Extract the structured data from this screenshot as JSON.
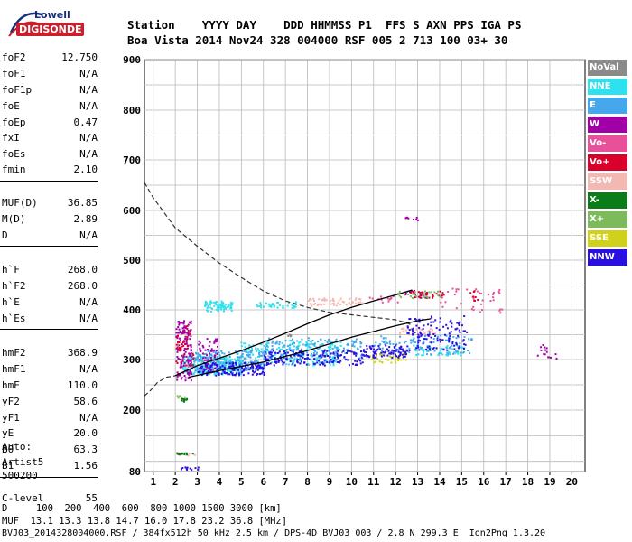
{
  "logo": {
    "line1": "Lowell",
    "line2": "DIGISONDE"
  },
  "header": {
    "row1": "Station    YYYY DAY    DDD HHMMSS P1  FFS S AXN PPS IGA PS",
    "row2": "Boa Vista 2014 Nov24 328 004000 RSF 005 2 713 100 03+ 30"
  },
  "params": [
    {
      "name": "foF2",
      "value": "12.750"
    },
    {
      "name": "foF1",
      "value": "N/A"
    },
    {
      "name": "foF1p",
      "value": "N/A"
    },
    {
      "name": "foE",
      "value": "N/A"
    },
    {
      "name": "foEp",
      "value": "0.47"
    },
    {
      "name": "fxI",
      "value": "N/A"
    },
    {
      "name": "foEs",
      "value": "N/A"
    },
    {
      "name": "fmin",
      "value": "2.10"
    },
    {
      "name": "MUF(D)",
      "value": "36.85"
    },
    {
      "name": "M(D)",
      "value": "2.89"
    },
    {
      "name": "D",
      "value": "N/A"
    },
    {
      "name": "h`F",
      "value": "268.0"
    },
    {
      "name": "h`F2",
      "value": "268.0"
    },
    {
      "name": "h`E",
      "value": "N/A"
    },
    {
      "name": "h`Es",
      "value": "N/A"
    },
    {
      "name": "hmF2",
      "value": "368.9"
    },
    {
      "name": "hmF1",
      "value": "N/A"
    },
    {
      "name": "hmE",
      "value": "110.0"
    },
    {
      "name": "yF2",
      "value": "58.6"
    },
    {
      "name": "yF1",
      "value": "N/A"
    },
    {
      "name": "yE",
      "value": "20.0"
    },
    {
      "name": "B0",
      "value": "63.3"
    },
    {
      "name": "B1",
      "value": "1.56"
    },
    {
      "name": "C-level",
      "value": "55"
    }
  ],
  "autoscale": {
    "label": "Auto:",
    "artist": "Artist5",
    "version": "500200"
  },
  "legend": [
    {
      "label": "NoVal",
      "color": "#8a8a8a"
    },
    {
      "label": "NNE",
      "color": "#2fe0ee"
    },
    {
      "label": "E",
      "color": "#45a8ec"
    },
    {
      "label": "W",
      "color": "#a100a6"
    },
    {
      "label": "Vo-",
      "color": "#e8509a"
    },
    {
      "label": "Vo+",
      "color": "#d9002c"
    },
    {
      "label": "SSW",
      "color": "#f3b8b2"
    },
    {
      "label": "X-",
      "color": "#0b7d18"
    },
    {
      "label": "X+",
      "color": "#7cba5c"
    },
    {
      "label": "SSE",
      "color": "#cfd11c"
    },
    {
      "label": "NNW",
      "color": "#2a10de"
    }
  ],
  "footer": {
    "d_row": "D     100  200  400  600  800 1000 1500 3000 [km]",
    "muf_row": "MUF  13.1 13.3 13.8 14.7 16.0 17.8 23.2 36.8 [MHz]",
    "file_row": "BVJ03_2014328004000.RSF / 384fx512h 50 kHz 2.5 km / DPS-4D BVJ03 003 / 2.8 N 299.3 E  Ion2Png 1.3.20"
  },
  "chart_data": {
    "type": "scatter",
    "title": "",
    "xlabel": "",
    "ylabel": "",
    "xlim": [
      0.6,
      20.6
    ],
    "ylim": [
      80,
      900
    ],
    "x_ticks": [
      1,
      2,
      3,
      4,
      5,
      6,
      7,
      8,
      9,
      10,
      11,
      12,
      13,
      14,
      15,
      16,
      17,
      18,
      19,
      20
    ],
    "y_ticks": [
      80,
      200,
      300,
      400,
      500,
      600,
      700,
      800,
      900
    ],
    "grid": true,
    "legend_placement": "right",
    "series": [
      {
        "name": "NNE",
        "clusters": [
          {
            "x": [
              2.3,
              5.0
            ],
            "y": [
              272,
              308
            ],
            "n": 260
          },
          {
            "x": [
              4.8,
              9.5
            ],
            "y": [
              290,
              340
            ],
            "n": 200
          },
          {
            "x": [
              3.3,
              4.6
            ],
            "y": [
              398,
              420
            ],
            "n": 70
          },
          {
            "x": [
              5.5,
              7.5
            ],
            "y": [
              405,
              418
            ],
            "n": 40
          },
          {
            "x": [
              12.8,
              15.2
            ],
            "y": [
              310,
              330
            ],
            "n": 60
          }
        ]
      },
      {
        "name": "E",
        "clusters": [
          {
            "x": [
              2.5,
              6.0
            ],
            "y": [
              280,
              320
            ],
            "n": 200
          },
          {
            "x": [
              6.0,
              10.5
            ],
            "y": [
              300,
              345
            ],
            "n": 160
          },
          {
            "x": [
              11.0,
              15.5
            ],
            "y": [
              312,
              350
            ],
            "n": 110
          }
        ]
      },
      {
        "name": "W",
        "clusters": [
          {
            "x": [
              2.0,
              2.7
            ],
            "y": [
              260,
              380
            ],
            "n": 150
          },
          {
            "x": [
              3.0,
              3.9
            ],
            "y": [
              275,
              345
            ],
            "n": 60
          },
          {
            "x": [
              12.4,
              13.4
            ],
            "y": [
              425,
              440
            ],
            "n": 20
          },
          {
            "x": [
              18.4,
              19.3
            ],
            "y": [
              300,
              335
            ],
            "n": 15
          },
          {
            "x": [
              12.4,
              13.0
            ],
            "y": [
              582,
              588
            ],
            "n": 8
          }
        ]
      },
      {
        "name": "Vo-",
        "clusters": [
          {
            "x": [
              14.0,
              16.8
            ],
            "y": [
              395,
              445
            ],
            "n": 40
          },
          {
            "x": [
              10.5,
              12.5
            ],
            "y": [
              415,
              430
            ],
            "n": 15
          }
        ]
      },
      {
        "name": "Vo+",
        "clusters": [
          {
            "x": [
              2.0,
              2.8
            ],
            "y": [
              290,
              370
            ],
            "n": 40
          },
          {
            "x": [
              12.5,
              14.2
            ],
            "y": [
              425,
              440
            ],
            "n": 30
          },
          {
            "x": [
              15.2,
              15.8
            ],
            "y": [
              420,
              440
            ],
            "n": 8
          }
        ]
      },
      {
        "name": "SSW",
        "clusters": [
          {
            "x": [
              8.0,
              10.5
            ],
            "y": [
              410,
              425
            ],
            "n": 60
          },
          {
            "x": [
              12.0,
              13.8
            ],
            "y": [
              350,
              365
            ],
            "n": 30
          },
          {
            "x": [
              2.0,
              3.0
            ],
            "y": [
              112,
              118
            ],
            "n": 10
          }
        ]
      },
      {
        "name": "X-",
        "clusters": [
          {
            "x": [
              2.0,
              2.8
            ],
            "y": [
              115,
              118
            ],
            "n": 14
          },
          {
            "x": [
              2.2,
              2.6
            ],
            "y": [
              218,
              224
            ],
            "n": 10
          }
        ]
      },
      {
        "name": "X+",
        "clusters": [
          {
            "x": [
              12.0,
              14.0
            ],
            "y": [
              425,
              440
            ],
            "n": 25
          },
          {
            "x": [
              2.0,
              2.5
            ],
            "y": [
              225,
              230
            ],
            "n": 6
          }
        ]
      },
      {
        "name": "SSE",
        "clusters": [
          {
            "x": [
              10.8,
              12.5
            ],
            "y": [
              295,
              315
            ],
            "n": 40
          }
        ]
      },
      {
        "name": "NNW",
        "clusters": [
          {
            "x": [
              3.0,
              6.0
            ],
            "y": [
              270,
              295
            ],
            "n": 150
          },
          {
            "x": [
              6.0,
              10.5
            ],
            "y": [
              290,
              320
            ],
            "n": 170
          },
          {
            "x": [
              10.5,
              12.5
            ],
            "y": [
              305,
              330
            ],
            "n": 90
          },
          {
            "x": [
              12.5,
              15.2
            ],
            "y": [
              320,
              390
            ],
            "n": 120
          },
          {
            "x": [
              2.2,
              3.1
            ],
            "y": [
              85,
              90
            ],
            "n": 12
          }
        ]
      },
      {
        "name": "NoVal",
        "clusters": [
          {
            "x": [
              7.0,
              7.5
            ],
            "y": [
              348,
              352
            ],
            "n": 4
          }
        ]
      }
    ],
    "trace_o": {
      "x": [
        2.0,
        3.0,
        4.0,
        5.0,
        6.0,
        7.0,
        8.0,
        9.0,
        10.0,
        11.0,
        12.0,
        12.75
      ],
      "y": [
        268,
        288,
        303,
        318,
        335,
        353,
        372,
        390,
        405,
        418,
        430,
        440
      ]
    },
    "trace_x": {
      "x": [
        2.6,
        4,
        6,
        8,
        10,
        12,
        13.0,
        13.6
      ],
      "y": [
        265,
        278,
        295,
        318,
        345,
        368,
        378,
        382
      ]
    },
    "profile": {
      "x": [
        0.6,
        1.0,
        2.0,
        3.0,
        4.0,
        5.0,
        6.0,
        7.0,
        8.0,
        9.0,
        10.0,
        11.0,
        12.0,
        12.5,
        12.75
      ],
      "y": [
        655,
        625,
        565,
        528,
        494,
        465,
        438,
        418,
        405,
        395,
        390,
        385,
        380,
        374,
        368.9
      ]
    },
    "bottomside": {
      "x": [
        0.6,
        0.9,
        1.2,
        1.6,
        2.0
      ],
      "y": [
        228,
        240,
        255,
        265,
        268
      ]
    }
  }
}
